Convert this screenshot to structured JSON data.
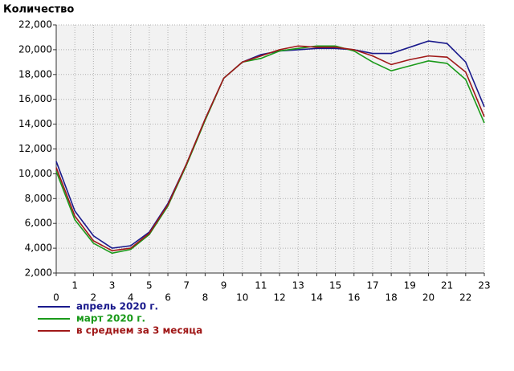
{
  "chart_data": {
    "type": "line",
    "title": "Количество",
    "x": [
      0,
      1,
      2,
      3,
      4,
      5,
      6,
      7,
      8,
      9,
      10,
      11,
      12,
      13,
      14,
      15,
      16,
      17,
      18,
      19,
      20,
      21,
      22,
      23
    ],
    "xlim": [
      0,
      23
    ],
    "xticks": [
      0,
      1,
      2,
      3,
      4,
      5,
      6,
      7,
      8,
      9,
      10,
      11,
      12,
      13,
      14,
      15,
      16,
      17,
      18,
      19,
      20,
      21,
      22,
      23
    ],
    "ylim": [
      2000,
      22000
    ],
    "yticks": [
      {
        "value": 2000,
        "label": "2,000"
      },
      {
        "value": 4000,
        "label": "4,000"
      },
      {
        "value": 6000,
        "label": "6,000"
      },
      {
        "value": 8000,
        "label": "8,000"
      },
      {
        "value": 10000,
        "label": "10,000"
      },
      {
        "value": 12000,
        "label": "12,000"
      },
      {
        "value": 14000,
        "label": "14,000"
      },
      {
        "value": 16000,
        "label": "16,000"
      },
      {
        "value": 18000,
        "label": "18,000"
      },
      {
        "value": 20000,
        "label": "20,000"
      },
      {
        "value": 22000,
        "label": "22,000"
      }
    ],
    "grid": true,
    "legend": "bottom-left",
    "series": [
      {
        "name": "апрель 2020 г.",
        "color": "#1a1a8c",
        "values": [
          11000,
          7000,
          5000,
          4000,
          4200,
          5300,
          7600,
          10800,
          14400,
          17700,
          19000,
          19600,
          19900,
          20000,
          20100,
          20100,
          20000,
          19700,
          19700,
          20200,
          20700,
          20500,
          19000,
          15400
        ]
      },
      {
        "name": "март 2020 г.",
        "color": "#1a9a1a",
        "values": [
          10200,
          6300,
          4400,
          3600,
          3900,
          5100,
          7400,
          10700,
          14300,
          17700,
          19000,
          19300,
          19900,
          20100,
          20300,
          20300,
          19900,
          19000,
          18300,
          18700,
          19100,
          18900,
          17600,
          14100
        ]
      },
      {
        "name": "в среднем за 3 месяца",
        "color": "#a01818",
        "values": [
          10500,
          6600,
          4600,
          3800,
          4000,
          5200,
          7500,
          10800,
          14400,
          17700,
          19000,
          19500,
          20000,
          20300,
          20200,
          20200,
          20000,
          19500,
          18800,
          19200,
          19500,
          19400,
          18200,
          14600
        ]
      }
    ]
  }
}
